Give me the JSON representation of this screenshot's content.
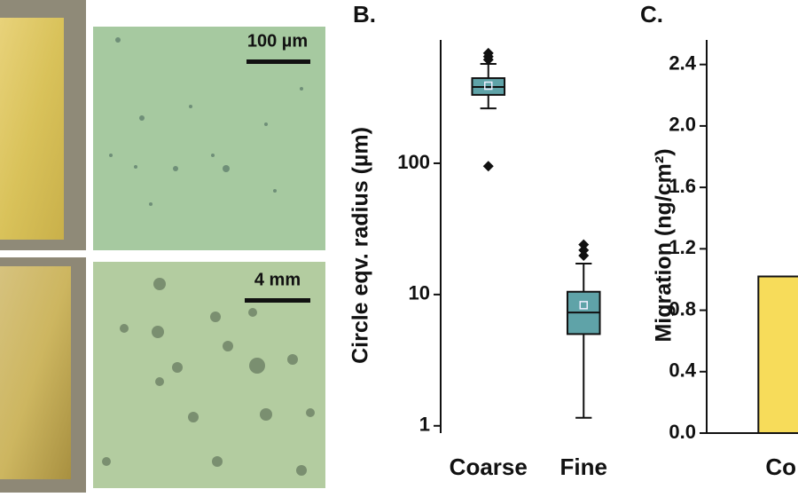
{
  "micrographs": [
    {
      "scale_bar": "100 µm"
    },
    {
      "scale_bar": "4 mm"
    }
  ],
  "chart_data": [
    {
      "type": "box",
      "title": "B.",
      "y_label": "Circle eqv. radius (µm)",
      "log_scale": true,
      "categories": [
        "Coarse",
        "Fine"
      ],
      "color": "#5fa3a8",
      "whisker_low": [
        262,
        1.15
      ],
      "q1": [
        332,
        5.0
      ],
      "median": [
        381,
        7.3
      ],
      "q3": [
        445,
        10.5
      ],
      "whisker_high": [
        571,
        17.2
      ],
      "mean": [
        390,
        8.3
      ],
      "outliers": [
        [
          690,
          650,
          615,
          95
        ],
        [
          24,
          21.8,
          19.8
        ]
      ],
      "ylim": [
        0.88,
        870
      ],
      "yticks": [
        1,
        10,
        100
      ]
    },
    {
      "type": "bar",
      "title": "C.",
      "y_label": "Migration (ng/cm²)",
      "categories": [
        "Co"
      ],
      "values": [
        1.02
      ],
      "color": "#f7dc5a",
      "ylim": [
        0,
        2.56
      ],
      "yticks": [
        {
          "value": 0,
          "label": "0.0"
        },
        0.4,
        0.8,
        1.2,
        1.6,
        {
          "value": 2,
          "label": "2.0"
        },
        2.4
      ]
    }
  ]
}
